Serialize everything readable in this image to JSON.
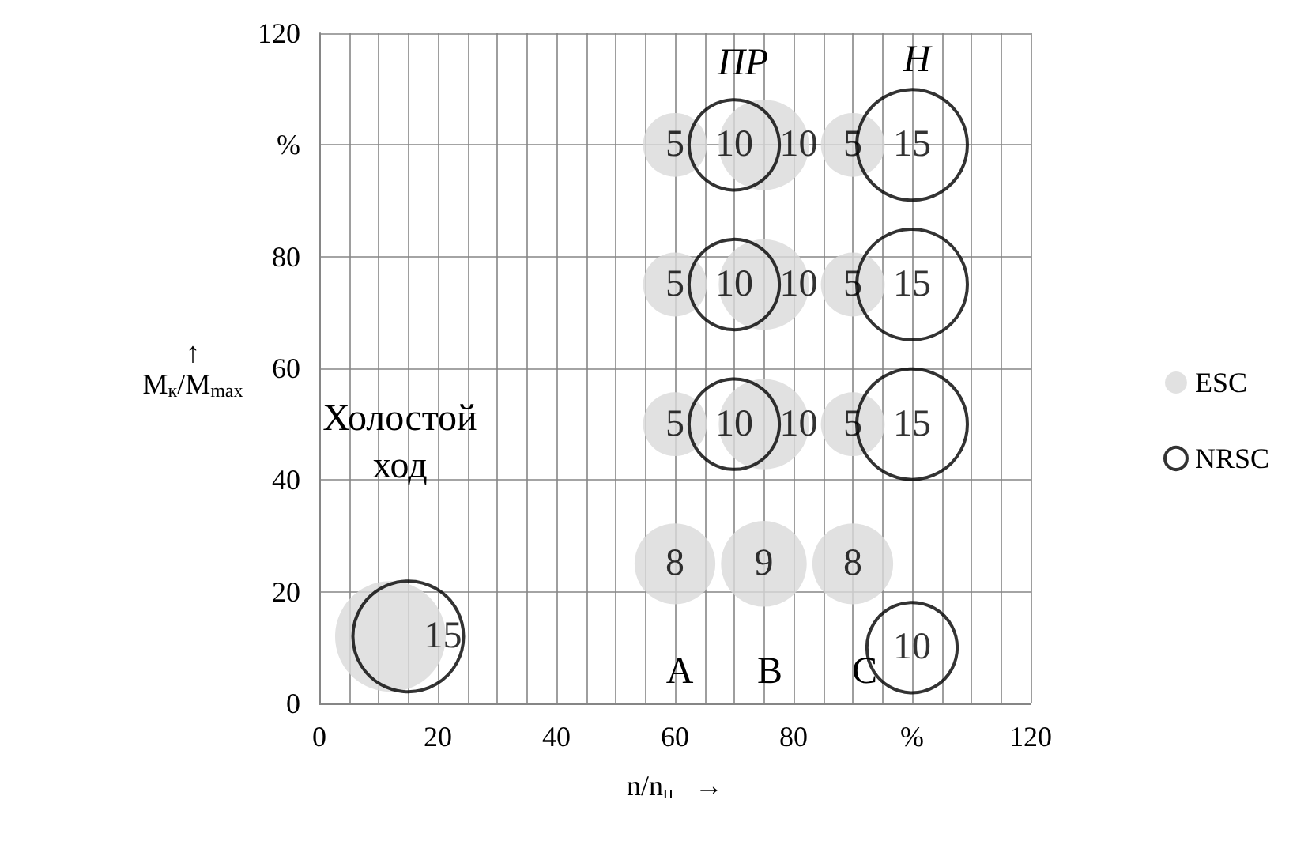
{
  "chart_data": {
    "type": "bubble",
    "xlabel": "n/n$_{н}$   →",
    "ylabel": "↑\nM$_{к}$/M$_{max}$",
    "xlim": [
      0,
      120
    ],
    "ylim": [
      0,
      120
    ],
    "xticks": [
      0,
      {
        "value": 5,
        "label": null
      },
      {
        "value": 10,
        "label": null
      },
      {
        "value": 15,
        "label": null
      },
      20,
      {
        "value": 25,
        "label": null
      },
      {
        "value": 30,
        "label": null
      },
      {
        "value": 35,
        "label": null
      },
      40,
      {
        "value": 45,
        "label": null
      },
      {
        "value": 50,
        "label": null
      },
      {
        "value": 55,
        "label": null
      },
      60,
      {
        "value": 65,
        "label": null
      },
      {
        "value": 70,
        "label": null
      },
      {
        "value": 75,
        "label": null
      },
      80,
      {
        "value": 85,
        "label": null
      },
      {
        "value": 90,
        "label": null
      },
      {
        "value": 95,
        "label": null
      },
      {
        "value": 100,
        "label": "%"
      },
      {
        "value": 105,
        "label": null
      },
      {
        "value": 110,
        "label": null
      },
      {
        "value": 115,
        "label": null
      },
      120
    ],
    "yticks": [
      0,
      20,
      40,
      60,
      80,
      {
        "value": 100,
        "label": "%"
      },
      120
    ],
    "grid": true,
    "legend": "right",
    "marker": "circle",
    "series": [
      {
        "name": "ESC",
        "color": "#d9d9d9",
        "x": [
          12,
          60,
          60,
          60,
          60,
          75,
          75,
          75,
          75,
          90,
          90,
          90,
          90
        ],
        "values": [
          12,
          100,
          75,
          50,
          25,
          100,
          75,
          50,
          25,
          100,
          75,
          50,
          25
        ],
        "sizes": [
          null,
          5,
          5,
          5,
          8,
          10,
          10,
          10,
          9,
          5,
          5,
          5,
          8
        ],
        "value_labels": [
          null,
          "5",
          "5",
          "5",
          "8",
          "10",
          "10",
          "10",
          "9",
          "5",
          "5",
          "5",
          "8"
        ]
      },
      {
        "name": "NRSC",
        "color": "#000000",
        "x": [
          15,
          70,
          70,
          70,
          100,
          100,
          100,
          100
        ],
        "values": [
          12,
          100,
          75,
          50,
          100,
          75,
          50,
          10
        ],
        "sizes": [
          15,
          10,
          10,
          10,
          15,
          15,
          15,
          10
        ],
        "value_labels": [
          "15",
          "10",
          "10",
          "10",
          "15",
          "15",
          "15",
          "10"
        ]
      }
    ],
    "annotations": [
      "ПР",
      "Н",
      "Холостой\nход",
      "A",
      "B",
      "C"
    ]
  }
}
